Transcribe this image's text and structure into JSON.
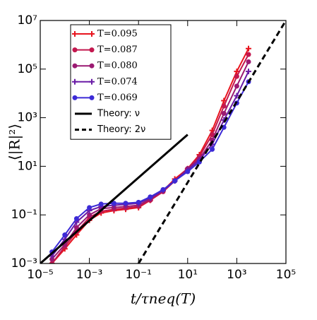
{
  "chart_data": {
    "type": "line",
    "xlabel": "t/τneq(T)",
    "ylabel": "⟨|R|²⟩",
    "xlog": true,
    "ylog": true,
    "xlim": [
      1e-05,
      100000
    ],
    "ylim": [
      0.001,
      10000000
    ],
    "xticks": [
      {
        "value": 1e-05,
        "label": "10⁻⁵"
      },
      {
        "value": 0.001,
        "label": "10⁻³"
      },
      {
        "value": 0.1,
        "label": "10⁻¹"
      },
      {
        "value": 10,
        "label": "10¹"
      },
      {
        "value": 1000,
        "label": "10³"
      },
      {
        "value": 100000,
        "label": "10⁵"
      }
    ],
    "yticks": [
      {
        "value": 0.001,
        "label": "10⁻³"
      },
      {
        "value": 0.1,
        "label": "10⁻¹"
      },
      {
        "value": 10,
        "label": "10¹"
      },
      {
        "value": 1000,
        "label": "10³"
      },
      {
        "value": 100000,
        "label": "10⁵"
      },
      {
        "value": 10000000,
        "label": "10⁷"
      }
    ],
    "legend": "upper left",
    "series": [
      {
        "name": "T=0.095",
        "color": "#e8141e",
        "marker": "plus",
        "x": [
          3e-05,
          0.0001,
          0.0003,
          0.001,
          0.003,
          0.01,
          0.03,
          0.1,
          0.3,
          1,
          3,
          10,
          30,
          100,
          300,
          1000,
          3000
        ],
        "values": [
          0.001,
          0.004,
          0.015,
          0.06,
          0.12,
          0.15,
          0.17,
          0.2,
          0.4,
          1,
          3,
          8,
          30,
          300,
          5000,
          80000,
          700000
        ]
      },
      {
        "name": "T=0.087",
        "color": "#c3174e",
        "marker": "circle",
        "x": [
          3e-05,
          0.0001,
          0.0003,
          0.001,
          0.003,
          0.01,
          0.03,
          0.1,
          0.3,
          1,
          3,
          10,
          30,
          100,
          300,
          1000,
          3000
        ],
        "values": [
          0.001,
          0.005,
          0.02,
          0.08,
          0.14,
          0.17,
          0.19,
          0.22,
          0.4,
          0.9,
          2.5,
          8,
          25,
          200,
          3000,
          50000,
          400000
        ]
      },
      {
        "name": "T=0.080",
        "color": "#9b1a72",
        "marker": "circle",
        "x": [
          3e-05,
          0.0001,
          0.0003,
          0.001,
          0.003,
          0.01,
          0.03,
          0.1,
          0.3,
          1,
          3,
          10,
          30,
          100,
          300,
          1000,
          3000
        ],
        "values": [
          0.0015,
          0.006,
          0.03,
          0.1,
          0.18,
          0.2,
          0.22,
          0.25,
          0.45,
          1,
          2.5,
          8,
          20,
          120,
          1500,
          20000,
          200000
        ]
      },
      {
        "name": "T=0.074",
        "color": "#6a1ca6",
        "marker": "plus",
        "x": [
          3e-05,
          0.0001,
          0.0003,
          0.001,
          0.003,
          0.01,
          0.03,
          0.1,
          0.3,
          1,
          3,
          10,
          30,
          100,
          300,
          1000,
          3000
        ],
        "values": [
          0.002,
          0.01,
          0.05,
          0.15,
          0.22,
          0.25,
          0.27,
          0.3,
          0.5,
          1,
          2.5,
          7,
          18,
          80,
          800,
          8000,
          80000
        ]
      },
      {
        "name": "T=0.069",
        "color": "#3c2ad6",
        "marker": "circle",
        "x": [
          3e-05,
          0.0001,
          0.0003,
          0.001,
          0.003,
          0.01,
          0.03,
          0.1,
          0.3,
          1,
          3,
          10,
          30,
          100,
          300,
          1000,
          3000
        ],
        "values": [
          0.003,
          0.015,
          0.07,
          0.2,
          0.28,
          0.3,
          0.3,
          0.33,
          0.55,
          1.1,
          2.5,
          6,
          15,
          50,
          400,
          4000,
          30000
        ]
      },
      {
        "name": "Theory: ν",
        "color": "#000000",
        "dash": false,
        "x": [
          1e-05,
          10
        ],
        "values": [
          0.001,
          200
        ]
      },
      {
        "name": "Theory: 2ν",
        "color": "#000000",
        "dash": true,
        "x": [
          0.1,
          100000
        ],
        "values": [
          0.001,
          10000000
        ]
      }
    ]
  }
}
